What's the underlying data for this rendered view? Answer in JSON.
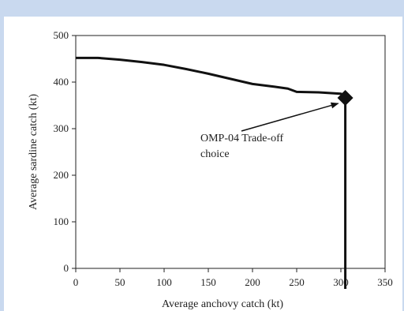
{
  "chart_data": {
    "type": "line",
    "title": "",
    "xlabel": "Average anchovy catch (kt)",
    "ylabel": "Average sardine catch (kt)",
    "xlim": [
      0,
      350
    ],
    "ylim": [
      0,
      500
    ],
    "xticks": [
      0,
      50,
      100,
      150,
      200,
      250,
      300,
      350
    ],
    "yticks": [
      0,
      100,
      200,
      300,
      400,
      500
    ],
    "grid": false,
    "series": [
      {
        "x": [
          0,
          25,
          50,
          75,
          100,
          125,
          150,
          175,
          200,
          225,
          240,
          250,
          275,
          300,
          305
        ],
        "y": [
          452,
          452,
          448,
          443,
          437,
          428,
          418,
          407,
          396,
          390,
          386,
          379,
          378,
          375,
          372
        ]
      }
    ],
    "marker": {
      "x": 305,
      "y": 366,
      "shape": "diamond"
    },
    "vertical_line_x": 305,
    "annotation": {
      "lines": [
        "OMP-04 Trade-off",
        "choice"
      ],
      "points_to": {
        "x": 305,
        "y": 366
      }
    }
  }
}
